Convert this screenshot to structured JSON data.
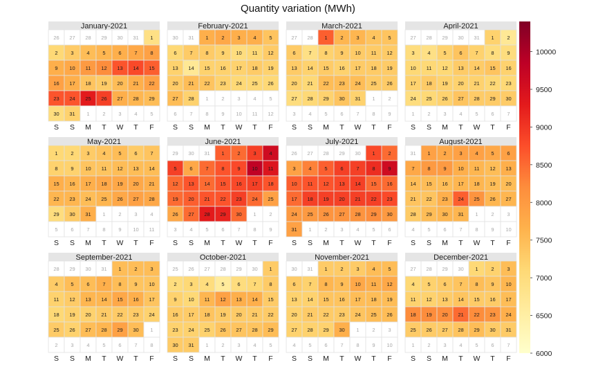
{
  "chart_data": {
    "type": "heatmap",
    "title": "Quantity variation (MWh)",
    "year": 2021,
    "weekday_labels": [
      "S",
      "S",
      "M",
      "T",
      "W",
      "T",
      "F"
    ],
    "colorbar": {
      "min": 6000,
      "max": 10400,
      "ticks": [
        6000,
        6500,
        7000,
        7500,
        8000,
        8500,
        9000,
        9500,
        10000
      ],
      "colors": [
        "#ffffcc",
        "#ffeda0",
        "#fed976",
        "#feb24c",
        "#fd8d3c",
        "#fc4e2a",
        "#e31a1c",
        "#bd0026",
        "#800026"
      ]
    },
    "months": [
      {
        "label": "January-2021",
        "values": [
          6900,
          7100,
          7300,
          7500,
          7600,
          7700,
          7800,
          7900,
          7700,
          7800,
          8000,
          8200,
          8700,
          8800,
          8600,
          7900,
          7700,
          7400,
          7300,
          7500,
          7700,
          7900,
          8700,
          8700,
          9300,
          8900,
          7700,
          7600,
          7500,
          7000,
          7200
        ]
      },
      {
        "label": "February-2021",
        "values": [
          7700,
          7800,
          7700,
          7700,
          7400,
          7100,
          7300,
          7300,
          7200,
          7000,
          7100,
          7300,
          7200,
          6700,
          7200,
          7200,
          7200,
          7300,
          7200,
          7300,
          7500,
          7400,
          7200,
          7100,
          7100,
          7100,
          7500,
          7200
        ]
      },
      {
        "label": "March-2021",
        "values": [
          8600,
          7600,
          7600,
          7400,
          7400,
          7300,
          6900,
          7200,
          7300,
          7300,
          7300,
          7300,
          7300,
          7200,
          7300,
          7200,
          7300,
          7300,
          7300,
          7200,
          7100,
          7500,
          7500,
          7500,
          7300,
          7300,
          7000,
          7100,
          7200,
          7400,
          7200
        ]
      },
      {
        "label": "April-2021",
        "values": [
          7200,
          6700,
          7000,
          6900,
          7200,
          7400,
          7200,
          7000,
          7000,
          7100,
          7100,
          7100,
          7300,
          7300,
          7400,
          7200,
          7200,
          7300,
          7200,
          7200,
          7200,
          7100,
          7100,
          7000,
          7100,
          7200,
          7400,
          7300,
          7300,
          7300
        ]
      },
      {
        "label": "May-2021",
        "values": [
          7100,
          7100,
          7300,
          7400,
          7500,
          7300,
          7400,
          7200,
          7200,
          7400,
          7400,
          7500,
          7500,
          7500,
          7700,
          7600,
          7700,
          7800,
          7800,
          7800,
          7700,
          7600,
          7600,
          7500,
          7600,
          7800,
          7900,
          7800,
          7000,
          7300,
          7700
        ]
      },
      {
        "label": "June-2021",
        "values": [
          8600,
          8500,
          8900,
          9600,
          8900,
          7800,
          8500,
          8700,
          8800,
          9800,
          9400,
          8500,
          8700,
          8500,
          8700,
          8800,
          8900,
          8700,
          8500,
          8600,
          8700,
          8700,
          8900,
          8500,
          7900,
          7800,
          8500,
          9300,
          9200,
          8500
        ]
      },
      {
        "label": "July-2021",
        "values": [
          8800,
          8500,
          7900,
          8300,
          8600,
          8900,
          8900,
          9100,
          9600,
          8600,
          8700,
          8700,
          8800,
          8900,
          8500,
          8500,
          8500,
          8900,
          8900,
          8900,
          8900,
          8900,
          8800,
          8000,
          8000,
          8100,
          8100,
          8100,
          8200,
          8000,
          7900
        ]
      },
      {
        "label": "August-2021",
        "values": [
          7900,
          7800,
          7900,
          7900,
          7800,
          7900,
          7800,
          8000,
          8000,
          7700,
          7600,
          7500,
          7700,
          7500,
          7500,
          7500,
          7600,
          7600,
          7500,
          7500,
          7400,
          7400,
          7700,
          8600,
          8100,
          7600,
          7600,
          7300,
          7500,
          7600,
          7600
        ]
      },
      {
        "label": "September-2021",
        "values": [
          7500,
          7500,
          7500,
          7300,
          7500,
          7500,
          7700,
          7500,
          7400,
          7400,
          7200,
          7300,
          7600,
          7600,
          7800,
          7700,
          7400,
          7100,
          7200,
          7200,
          7300,
          7300,
          7300,
          7200,
          7300,
          7200,
          7500,
          7600,
          7900,
          7500
        ]
      },
      {
        "label": "October-2021",
        "values": [
          7300,
          7000,
          7100,
          7000,
          6600,
          7000,
          7100,
          7300,
          7200,
          7100,
          7600,
          7900,
          7700,
          7700,
          7300,
          7300,
          7300,
          7400,
          7300,
          7300,
          7300,
          7300,
          7200,
          7200,
          7200,
          7400,
          7400,
          7400,
          7500,
          7300,
          7300
        ]
      },
      {
        "label": "November-2021",
        "values": [
          7300,
          7300,
          7300,
          7500,
          7500,
          7300,
          7200,
          7600,
          7500,
          7800,
          7700,
          7800,
          7200,
          7200,
          7400,
          7400,
          7500,
          7500,
          7500,
          7200,
          7300,
          7300,
          7300,
          7400,
          7500,
          7500,
          7200,
          7200,
          7200,
          7700
        ]
      },
      {
        "label": "December-2021",
        "values": [
          7100,
          7200,
          7500,
          7100,
          7200,
          7300,
          7400,
          7500,
          7400,
          7600,
          7200,
          7200,
          7300,
          7400,
          7300,
          7300,
          7500,
          8200,
          8200,
          8200,
          8500,
          8200,
          8100,
          7700,
          7300,
          7300,
          7300,
          7400,
          7500,
          7300,
          7300
        ]
      }
    ]
  }
}
